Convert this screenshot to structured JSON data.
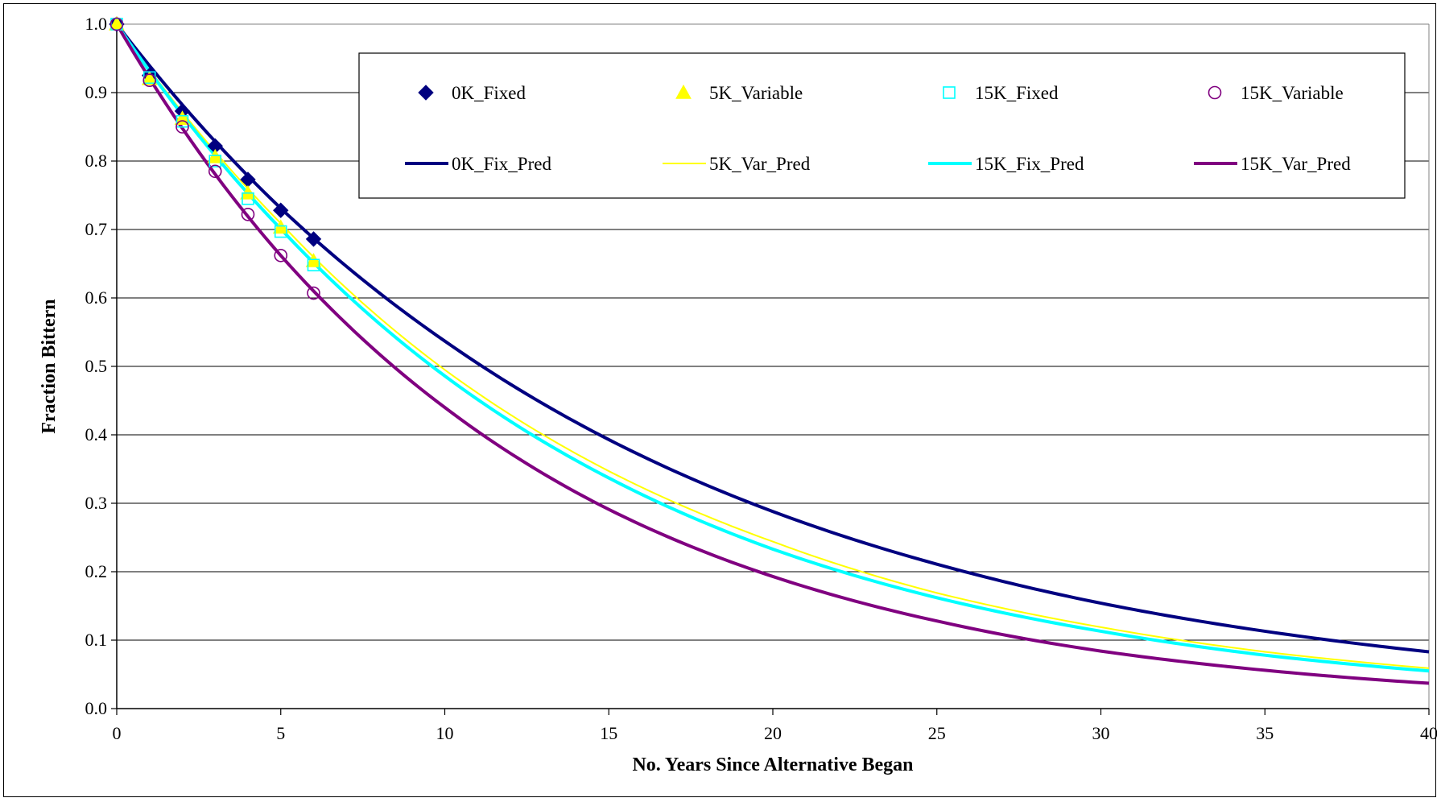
{
  "chart_data": {
    "type": "scatter",
    "title": "",
    "xlabel": "No. Years Since Alternative Began",
    "ylabel": "Fraction Bittern",
    "xlim": [
      0,
      40
    ],
    "ylim": [
      0,
      1
    ],
    "x_ticks": [
      "0",
      "5",
      "10",
      "15",
      "20",
      "25",
      "30",
      "35",
      "40"
    ],
    "y_ticks": [
      "0.0",
      "0.1",
      "0.2",
      "0.3",
      "0.4",
      "0.5",
      "0.6",
      "0.7",
      "0.8",
      "0.9",
      "1.0"
    ],
    "grid": "horizontal",
    "legend_position": "top-right",
    "series": [
      {
        "name": "0K_Fixed",
        "kind": "marker",
        "marker": "diamond",
        "color": "#000080",
        "x": [
          0,
          1,
          2,
          3,
          4,
          5,
          6
        ],
        "y": [
          1.0,
          0.925,
          0.873,
          0.822,
          0.773,
          0.728,
          0.686
        ]
      },
      {
        "name": "5K_Variable",
        "kind": "marker",
        "marker": "triangle",
        "color": "#ffff00",
        "x": [
          0,
          1,
          2,
          3,
          4,
          5,
          6
        ],
        "y": [
          1.0,
          0.92,
          0.862,
          0.806,
          0.753,
          0.703,
          0.654
        ]
      },
      {
        "name": "15K_Fixed",
        "kind": "marker",
        "marker": "square",
        "color": "#00ffff",
        "x": [
          0,
          1,
          2,
          3,
          4,
          5,
          6
        ],
        "y": [
          1.0,
          0.922,
          0.858,
          0.8,
          0.745,
          0.697,
          0.648
        ]
      },
      {
        "name": "15K_Variable",
        "kind": "marker",
        "marker": "circle",
        "color": "#800080",
        "x": [
          0,
          1,
          2,
          3,
          4,
          5,
          6
        ],
        "y": [
          1.0,
          0.918,
          0.85,
          0.785,
          0.722,
          0.662,
          0.607
        ]
      },
      {
        "name": "0K_Fix_Pred",
        "kind": "line",
        "color": "#000080",
        "width": 4,
        "x": [
          0,
          5,
          10,
          15,
          20,
          25,
          30,
          35,
          40
        ],
        "y": [
          1.0,
          0.731,
          0.537,
          0.393,
          0.288,
          0.211,
          0.154,
          0.113,
          0.083
        ]
      },
      {
        "name": "5K_Var_Pred",
        "kind": "line",
        "color": "#ffff00",
        "width": 2,
        "x": [
          0,
          5,
          10,
          15,
          20,
          25,
          30,
          35,
          40
        ],
        "y": [
          1.0,
          0.709,
          0.495,
          0.347,
          0.244,
          0.169,
          0.119,
          0.083,
          0.059
        ]
      },
      {
        "name": "15K_Fix_Pred",
        "kind": "line",
        "color": "#00ffff",
        "width": 4,
        "x": [
          0,
          5,
          10,
          15,
          20,
          25,
          30,
          35,
          40
        ],
        "y": [
          1.0,
          0.701,
          0.486,
          0.337,
          0.233,
          0.162,
          0.113,
          0.078,
          0.055
        ]
      },
      {
        "name": "15K_Var_Pred",
        "kind": "line",
        "color": "#800080",
        "width": 4,
        "x": [
          0,
          5,
          10,
          15,
          20,
          25,
          30,
          35,
          40
        ],
        "y": [
          1.0,
          0.662,
          0.44,
          0.291,
          0.193,
          0.128,
          0.084,
          0.056,
          0.037
        ]
      }
    ]
  }
}
